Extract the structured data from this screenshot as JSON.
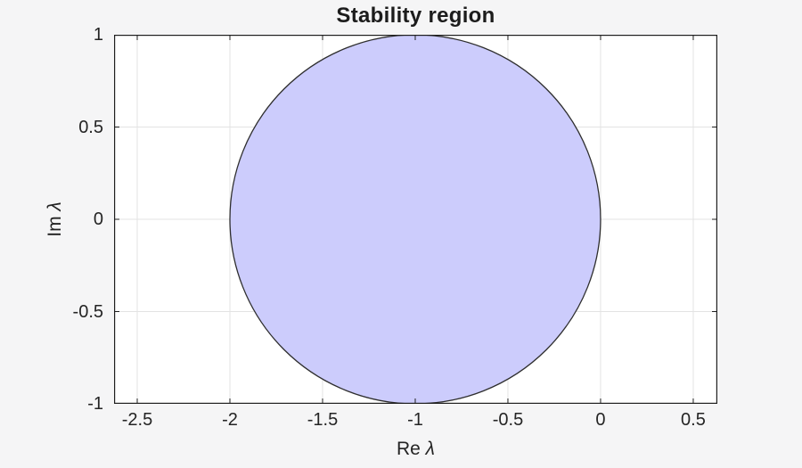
{
  "page": {
    "background": "#f5f5f6"
  },
  "chart_data": {
    "type": "area",
    "title": "Stability region",
    "xlabel": "Re λ",
    "ylabel": "Im λ",
    "xlim": [
      -2.625,
      0.63
    ],
    "ylim": [
      -1,
      1
    ],
    "xticks": [
      -2.5,
      -2,
      -1.5,
      -1,
      -0.5,
      0,
      0.5
    ],
    "yticks": [
      -1,
      -0.5,
      0,
      0.5,
      1
    ],
    "grid": true,
    "legend_position": "none",
    "region": {
      "shape": "disk",
      "center": [
        -1,
        0
      ],
      "radius": 1,
      "fill_color": "#ccccfc",
      "edge_color": "#2e2e2e"
    },
    "colors": {
      "plot_bg": "#ffffff",
      "grid": "#e3e3e3",
      "axis": "#1f1f1f",
      "text": "#242424",
      "title": "#1c1c1c"
    }
  }
}
